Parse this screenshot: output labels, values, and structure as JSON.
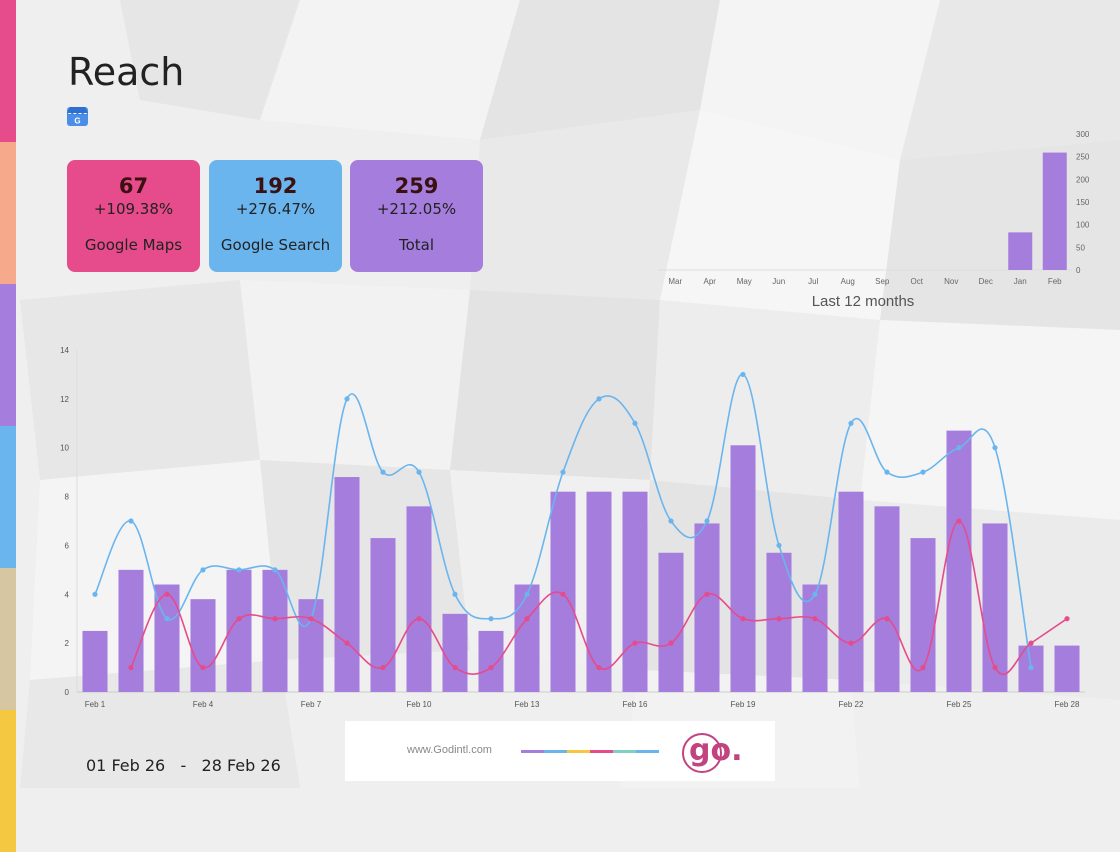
{
  "page": {
    "title": "Reach"
  },
  "cards": [
    {
      "value": "67",
      "change": "+109.38%",
      "label": "Google Maps",
      "color": "#e64b8b"
    },
    {
      "value": "192",
      "change": "+276.47%",
      "label": "Google Search",
      "color": "#6bb5ee"
    },
    {
      "value": "259",
      "change": "+212.05%",
      "label": "Total",
      "color": "#a47ddd"
    }
  ],
  "date_range": {
    "start": "01 Feb 26",
    "separator": "-",
    "end": "28 Feb 26"
  },
  "footer": {
    "url": "www.Godintl.com",
    "logo": "go."
  },
  "colors": {
    "bar": "#a47ddd",
    "search_line": "#6bb5ee",
    "maps_line": "#e64b8b",
    "side_strip": [
      "#e64b8b",
      "#f7a98b",
      "#a47ddd",
      "#6bb5ee",
      "#d6c6a2",
      "#f5c842"
    ]
  },
  "chart_data": [
    {
      "type": "bar",
      "categories": [
        "Mar",
        "Apr",
        "May",
        "Jun",
        "Jul",
        "Aug",
        "Sep",
        "Oct",
        "Nov",
        "Dec",
        "Jan",
        "Feb"
      ],
      "values": [
        0,
        0,
        0,
        0,
        0,
        0,
        0,
        0,
        0,
        0,
        83,
        259
      ],
      "xlabel": "Last 12 months",
      "ylim": [
        0,
        300
      ],
      "yticks": [
        0,
        50,
        100,
        150,
        200,
        250,
        300
      ],
      "y_axis_side": "right"
    },
    {
      "type": "bar",
      "x": [
        "Feb 1",
        "Feb 2",
        "Feb 3",
        "Feb 4",
        "Feb 5",
        "Feb 6",
        "Feb 7",
        "Feb 8",
        "Feb 9",
        "Feb 10",
        "Feb 11",
        "Feb 12",
        "Feb 13",
        "Feb 14",
        "Feb 15",
        "Feb 16",
        "Feb 17",
        "Feb 18",
        "Feb 19",
        "Feb 20",
        "Feb 21",
        "Feb 22",
        "Feb 23",
        "Feb 24",
        "Feb 25",
        "Feb 26",
        "Feb 27",
        "Feb 28"
      ],
      "tick_labels": [
        "Feb 1",
        "Feb 4",
        "Feb 7",
        "Feb 10",
        "Feb 13",
        "Feb 16",
        "Feb 19",
        "Feb 22",
        "Feb 25",
        "Feb 28"
      ],
      "ylim": [
        0,
        14
      ],
      "yticks": [
        0,
        2,
        4,
        6,
        8,
        10,
        12,
        14
      ],
      "series": [
        {
          "type": "bar",
          "values": [
            2.5,
            5,
            4.4,
            3.8,
            5,
            5,
            3.8,
            8.8,
            6.3,
            7.6,
            3.2,
            2.5,
            4.4,
            8.2,
            8.2,
            8.2,
            5.7,
            6.9,
            10.1,
            5.7,
            4.4,
            8.2,
            7.6,
            6.3,
            10.7,
            6.9,
            1.9,
            1.9
          ]
        },
        {
          "type": "line",
          "values": [
            4,
            7,
            3,
            5,
            5,
            5,
            3,
            12,
            9,
            9,
            4,
            3,
            4,
            9,
            12,
            11,
            7,
            7,
            13,
            6,
            4,
            11,
            9,
            9,
            10,
            10,
            1,
            null
          ]
        },
        {
          "type": "line",
          "values": [
            null,
            1,
            4,
            1,
            3,
            3,
            3,
            2,
            1,
            3,
            1,
            1,
            3,
            4,
            1,
            2,
            2,
            4,
            3,
            3,
            3,
            2,
            3,
            1,
            7,
            1,
            2,
            3
          ]
        }
      ]
    }
  ]
}
